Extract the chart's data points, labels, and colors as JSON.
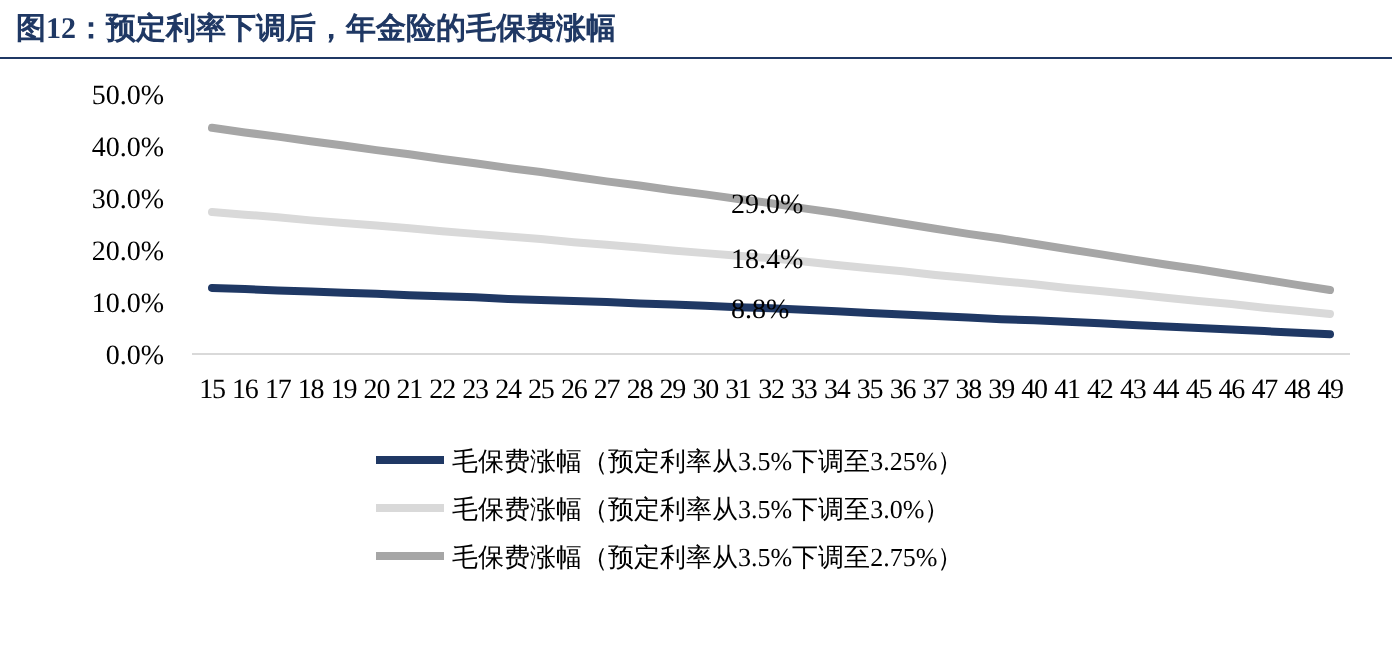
{
  "chart_data": {
    "type": "line",
    "title": "图12：预定利率下调后，年金险的毛保费涨幅",
    "categories": [
      "15",
      "16",
      "17",
      "18",
      "19",
      "20",
      "21",
      "22",
      "23",
      "24",
      "25",
      "26",
      "27",
      "28",
      "29",
      "30",
      "31",
      "32",
      "33",
      "34",
      "35",
      "36",
      "37",
      "38",
      "39",
      "40",
      "41",
      "42",
      "43",
      "44",
      "45",
      "46",
      "47",
      "48",
      "49"
    ],
    "series": [
      {
        "name": "毛保费涨幅（预定利率从3.5%下调至3.25%）",
        "color": "#1f3864",
        "values": [
          12.7,
          12.5,
          12.2,
          12.0,
          11.8,
          11.6,
          11.3,
          11.1,
          10.9,
          10.6,
          10.4,
          10.2,
          10.0,
          9.7,
          9.5,
          9.3,
          9.0,
          8.8,
          8.5,
          8.2,
          7.9,
          7.6,
          7.3,
          7.0,
          6.7,
          6.5,
          6.2,
          5.9,
          5.6,
          5.3,
          5.0,
          4.7,
          4.4,
          4.1,
          3.8
        ],
        "value_labels": [
          null,
          null,
          null,
          null,
          null,
          null,
          null,
          null,
          null,
          null,
          null,
          null,
          null,
          null,
          null,
          null,
          null,
          "8.8%",
          null,
          null,
          null,
          null,
          null,
          null,
          null,
          null,
          null,
          null,
          null,
          null,
          null,
          null,
          null,
          null,
          null
        ]
      },
      {
        "name": "毛保费涨幅（预定利率从3.5%下调至3.0%）",
        "color": "#d9d9d9",
        "values": [
          27.3,
          26.8,
          26.3,
          25.7,
          25.2,
          24.7,
          24.2,
          23.6,
          23.1,
          22.6,
          22.1,
          21.5,
          21.0,
          20.5,
          19.9,
          19.4,
          18.9,
          18.4,
          17.8,
          17.1,
          16.5,
          15.9,
          15.2,
          14.6,
          14.0,
          13.4,
          12.7,
          12.1,
          11.5,
          10.8,
          10.2,
          9.6,
          8.9,
          8.3,
          7.7
        ],
        "value_labels": [
          null,
          null,
          null,
          null,
          null,
          null,
          null,
          null,
          null,
          null,
          null,
          null,
          null,
          null,
          null,
          null,
          null,
          "18.4%",
          null,
          null,
          null,
          null,
          null,
          null,
          null,
          null,
          null,
          null,
          null,
          null,
          null,
          null,
          null,
          null,
          null
        ]
      },
      {
        "name": "毛保费涨幅（预定利率从3.5%下调至2.75%）",
        "color": "#a6a6a6",
        "values": [
          43.5,
          42.6,
          41.8,
          40.9,
          40.1,
          39.2,
          38.4,
          37.5,
          36.7,
          35.8,
          35.0,
          34.1,
          33.2,
          32.4,
          31.5,
          30.7,
          29.8,
          29.0,
          28.0,
          27.1,
          26.1,
          25.1,
          24.1,
          23.1,
          22.2,
          21.2,
          20.2,
          19.2,
          18.2,
          17.2,
          16.3,
          15.3,
          14.3,
          13.3,
          12.3
        ],
        "value_labels": [
          null,
          null,
          null,
          null,
          null,
          null,
          null,
          null,
          null,
          null,
          null,
          null,
          null,
          null,
          null,
          null,
          null,
          "29.0%",
          null,
          null,
          null,
          null,
          null,
          null,
          null,
          null,
          null,
          null,
          null,
          null,
          null,
          null,
          null,
          null,
          null
        ]
      }
    ],
    "ylim": [
      0,
      50
    ],
    "yticks": [
      {
        "value": 0,
        "label": "0.0%"
      },
      {
        "value": 10,
        "label": "10.0%"
      },
      {
        "value": 20,
        "label": "20.0%"
      },
      {
        "value": 30,
        "label": "30.0%"
      },
      {
        "value": 40,
        "label": "40.0%"
      },
      {
        "value": 50,
        "label": "50.0%"
      }
    ],
    "grid": false,
    "legend": "bottom",
    "marker": "none",
    "line_style": "solid"
  }
}
